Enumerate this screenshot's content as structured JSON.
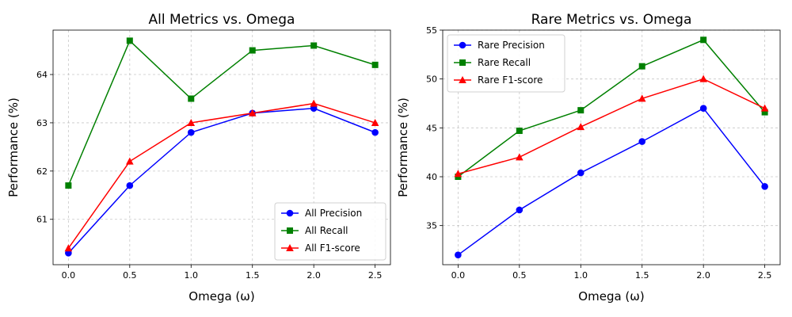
{
  "chart_data": [
    {
      "type": "line",
      "title": "All Metrics vs. Omega",
      "xlabel": "Omega (ω)",
      "ylabel": "Performance (%)",
      "x": [
        0.0,
        0.5,
        1.0,
        1.5,
        2.0,
        2.5
      ],
      "xlim": [
        -0.125,
        2.625
      ],
      "ylim": [
        60.06,
        64.92
      ],
      "xticks": [
        "0.0",
        "0.5",
        "1.0",
        "1.5",
        "2.0",
        "2.5"
      ],
      "yticks": [
        61,
        62,
        63,
        64
      ],
      "grid": true,
      "grid_style": "dashed",
      "legend_position": "lower right",
      "series": [
        {
          "name": "All Precision",
          "color": "#0000ff",
          "marker": "circle",
          "values": [
            60.3,
            61.7,
            62.8,
            63.2,
            63.3,
            62.8
          ]
        },
        {
          "name": "All Recall",
          "color": "#008000",
          "marker": "square",
          "values": [
            61.7,
            64.7,
            63.5,
            64.5,
            64.6,
            64.2
          ]
        },
        {
          "name": "All F1-score",
          "color": "#ff0000",
          "marker": "triangle",
          "values": [
            60.4,
            62.2,
            63.0,
            63.2,
            63.4,
            63.0
          ]
        }
      ]
    },
    {
      "type": "line",
      "title": "Rare Metrics vs. Omega",
      "xlabel": "Omega (ω)",
      "ylabel": "Performance (%)",
      "x": [
        0.0,
        0.5,
        1.0,
        1.5,
        2.0,
        2.5
      ],
      "xlim": [
        -0.125,
        2.625
      ],
      "ylim": [
        31.0,
        55.0
      ],
      "xticks": [
        "0.0",
        "0.5",
        "1.0",
        "1.5",
        "2.0",
        "2.5"
      ],
      "yticks": [
        35,
        40,
        45,
        50,
        55
      ],
      "grid": true,
      "grid_style": "dashed",
      "legend_position": "upper left",
      "series": [
        {
          "name": "Rare Precision",
          "color": "#0000ff",
          "marker": "circle",
          "values": [
            32.0,
            36.6,
            40.4,
            43.6,
            47.0,
            39.0
          ]
        },
        {
          "name": "Rare Recall",
          "color": "#008000",
          "marker": "square",
          "values": [
            40.0,
            44.7,
            46.8,
            51.3,
            54.0,
            46.6
          ]
        },
        {
          "name": "Rare F1-score",
          "color": "#ff0000",
          "marker": "triangle",
          "values": [
            40.3,
            42.0,
            45.1,
            48.0,
            50.0,
            47.0
          ]
        }
      ]
    }
  ]
}
